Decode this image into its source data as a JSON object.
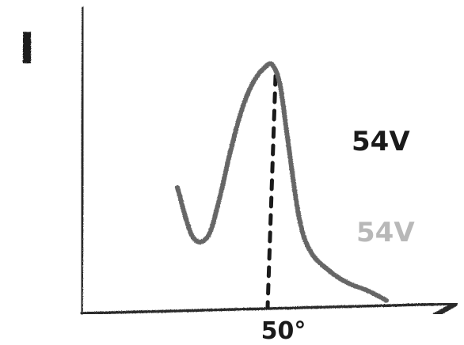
{
  "chart_data": {
    "type": "line",
    "title": "",
    "ylabel": "I",
    "xlabel": "",
    "x_tick_labels": [
      {
        "x": 50,
        "text": "50°"
      }
    ],
    "annotations": [
      {
        "text": "54V",
        "style": "dark"
      },
      {
        "text": "54V",
        "style": "faint"
      }
    ],
    "series": [
      {
        "x": [
          25,
          29,
          33,
          36,
          39,
          42,
          45,
          48,
          50,
          52,
          54,
          57,
          60,
          65,
          70,
          75,
          80
        ],
        "y": [
          0.5,
          0.3,
          0.3,
          0.45,
          0.65,
          0.82,
          0.93,
          0.99,
          1.0,
          0.92,
          0.7,
          0.38,
          0.24,
          0.16,
          0.11,
          0.08,
          0.04
        ]
      }
    ],
    "marker": {
      "x": 50,
      "style": "dashed-vertical"
    },
    "xlim": [
      0,
      95
    ],
    "ylim": [
      0,
      1.2
    ],
    "grid": false,
    "legend": "none"
  },
  "colors": {
    "ink": "#1a1a1a",
    "curve": "#666666",
    "faint": "#b8b8b8",
    "axis": "#2a2a2a"
  }
}
